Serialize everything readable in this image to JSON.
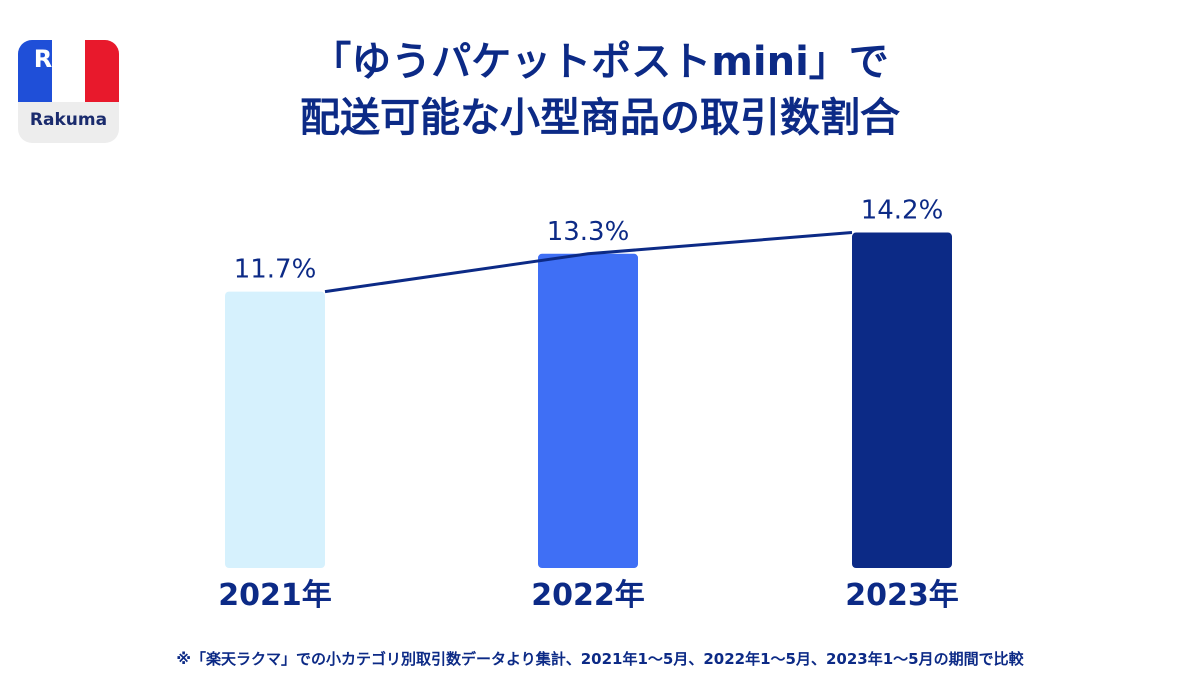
{
  "logo": {
    "mark": "R",
    "wordmark": "Rakuma",
    "flag_colors": [
      "#1f4fd8",
      "#ffffff",
      "#e8192c"
    ]
  },
  "chart_data": {
    "type": "bar",
    "title": "「ゆうパケットポストmini」で",
    "subtitle": "配送可能な小型商品の取引数割合",
    "categories": [
      "2021年",
      "2022年",
      "2023年"
    ],
    "values": [
      11.7,
      13.3,
      14.2
    ],
    "value_labels": [
      "11.7%",
      "13.3%",
      "14.2%"
    ],
    "unit": "%",
    "bar_colors": [
      "#d6f1fd",
      "#3f6ff5",
      "#0c2a86"
    ],
    "trend_line": true,
    "ylim": [
      0,
      14.9
    ],
    "grid": false,
    "xlabel": "",
    "ylabel": ""
  },
  "footnote": "※「楽天ラクマ」での小カテゴリ別取引数データより集計、2021年1〜5月、2022年1〜5月、2023年1〜5月の期間で比較"
}
